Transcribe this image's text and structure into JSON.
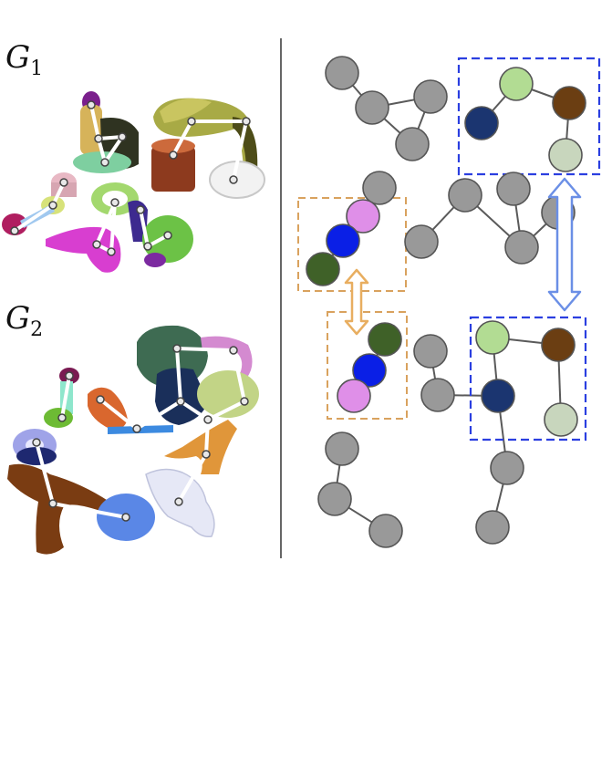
{
  "panels": {
    "left": {
      "graph_labels": [
        {
          "base": "G",
          "sub": "1"
        },
        {
          "base": "G",
          "sub": "2"
        }
      ]
    }
  },
  "colors": {
    "gray_node": "#999999",
    "light_green": "#b2dc93",
    "brown": "#6b3e12",
    "navy": "#1b3570",
    "pale_green": "#c8d6bd",
    "violet": "#df8fe8",
    "blue": "#0a1fe6",
    "dark_green": "#3f6128",
    "box_blue": "#2b3fe0",
    "box_orange": "#d9a25e",
    "arrow_blue": "#6b8fe6",
    "arrow_orange": "#e8ae60"
  }
}
